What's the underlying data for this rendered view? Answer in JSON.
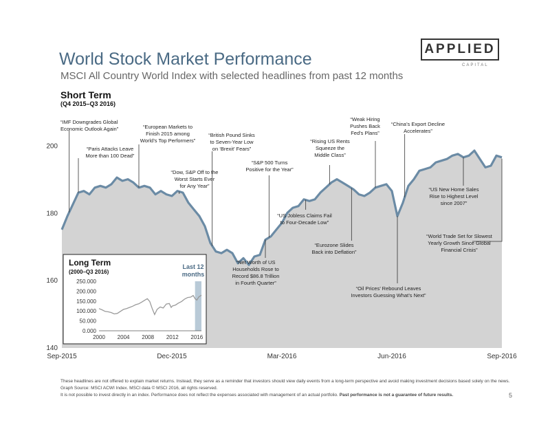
{
  "header": {
    "title": "World Stock Market Performance",
    "subtitle": "MSCI All Country World Index with selected headlines from past 12 months",
    "logo_text": "APPLIED",
    "logo_sub": "CAPITAL"
  },
  "section": {
    "title": "Short Term",
    "range": "(Q4 2015–Q3 2016)"
  },
  "colors": {
    "area": "#d3d3d3",
    "line": "#6b8ba5",
    "inset_band": "#b9cad7",
    "title": "#4a6a84"
  },
  "chart_data": [
    {
      "type": "area",
      "title": "Short Term",
      "subtitle": "(Q4 2015–Q3 2016)",
      "ylim": [
        140,
        203
      ],
      "yticks": [
        140,
        160,
        180,
        200
      ],
      "xlim": [
        0,
        12
      ],
      "xtick_labels": [
        {
          "x": 0,
          "label": "Sep-2015"
        },
        {
          "x": 3,
          "label": "Dec-2015"
        },
        {
          "x": 6,
          "label": "Mar-2016"
        },
        {
          "x": 9,
          "label": "Jun-2016"
        },
        {
          "x": 12,
          "label": "Sep-2016"
        }
      ],
      "series": [
        {
          "values": [
            [
              0,
              175
            ],
            [
              0.15,
              179
            ],
            [
              0.3,
              182.5
            ],
            [
              0.45,
              186
            ],
            [
              0.6,
              186.5
            ],
            [
              0.75,
              185.5
            ],
            [
              0.9,
              187.5
            ],
            [
              1.05,
              188
            ],
            [
              1.2,
              187.5
            ],
            [
              1.35,
              188.5
            ],
            [
              1.5,
              190.5
            ],
            [
              1.65,
              189.5
            ],
            [
              1.8,
              190
            ],
            [
              1.95,
              189
            ],
            [
              2.1,
              187.5
            ],
            [
              2.25,
              188
            ],
            [
              2.4,
              187.5
            ],
            [
              2.55,
              185.5
            ],
            [
              2.7,
              186.5
            ],
            [
              2.85,
              185.5
            ],
            [
              3,
              185
            ],
            [
              3.15,
              186.5
            ],
            [
              3.3,
              186
            ],
            [
              3.45,
              183
            ],
            [
              3.6,
              181
            ],
            [
              3.75,
              179
            ],
            [
              3.9,
              176
            ],
            [
              4.05,
              171
            ],
            [
              4.2,
              168.5
            ],
            [
              4.35,
              168
            ],
            [
              4.5,
              169
            ],
            [
              4.65,
              168
            ],
            [
              4.8,
              165
            ],
            [
              4.95,
              166.5
            ],
            [
              5.1,
              164.5
            ],
            [
              5.25,
              167
            ],
            [
              5.4,
              167.5
            ],
            [
              5.55,
              172
            ],
            [
              5.7,
              173
            ],
            [
              5.85,
              175
            ],
            [
              6,
              177
            ],
            [
              6.15,
              180
            ],
            [
              6.3,
              181.5
            ],
            [
              6.45,
              182
            ],
            [
              6.6,
              184
            ],
            [
              6.75,
              183.5
            ],
            [
              6.9,
              184
            ],
            [
              7.05,
              186
            ],
            [
              7.2,
              187.5
            ],
            [
              7.35,
              189
            ],
            [
              7.5,
              190
            ],
            [
              7.65,
              189
            ],
            [
              7.8,
              188
            ],
            [
              7.95,
              187
            ],
            [
              8.1,
              185.5
            ],
            [
              8.25,
              185
            ],
            [
              8.4,
              186
            ],
            [
              8.55,
              187.5
            ],
            [
              8.7,
              188
            ],
            [
              8.85,
              188.5
            ],
            [
              9,
              186.5
            ],
            [
              9.15,
              179
            ],
            [
              9.3,
              183
            ],
            [
              9.45,
              188
            ],
            [
              9.6,
              190
            ],
            [
              9.75,
              192.5
            ],
            [
              9.9,
              193
            ],
            [
              10.05,
              193.5
            ],
            [
              10.2,
              195
            ],
            [
              10.35,
              195.5
            ],
            [
              10.5,
              196
            ],
            [
              10.65,
              197
            ],
            [
              10.8,
              197.5
            ],
            [
              10.95,
              196.5
            ],
            [
              11.1,
              197
            ],
            [
              11.25,
              198.5
            ],
            [
              11.4,
              196
            ],
            [
              11.55,
              193.5
            ],
            [
              11.7,
              194
            ],
            [
              11.85,
              197
            ],
            [
              12,
              196.5
            ]
          ]
        }
      ],
      "annotations": [
        {
          "x": 0.2,
          "text": "“IMF Downgrades Global\nEconomic Outlook Again”"
        },
        {
          "x": 0.45,
          "text": "“Paris Attacks Leave\nMore than 100 Dead”"
        },
        {
          "x": 2.1,
          "text": "“European Markets to\nFinish 2015 among\nWorld’s Top Performers”"
        },
        {
          "x": 3.2,
          "text": "“Dow, S&P Off to the\nWorst Starts Ever\nfor Any Year”"
        },
        {
          "x": 4.1,
          "text": "“British Pound Sinks\nto Seven-Year Low\non ‘Brexit’ Fears”"
        },
        {
          "x": 5.55,
          "text": "“Net Worth of US\nHouseholds Rose to\nRecord $86.8 Trillion\nin Fourth Quarter”"
        },
        {
          "x": 5.65,
          "text": "“S&P 500 Turns\nPositive for the Year”"
        },
        {
          "x": 6.65,
          "text": "“US Jobless Claims Fail\nto Four-Decade Low”"
        },
        {
          "x": 7.3,
          "text": "“Rising US Rents\nSqueeze the\nMiddle Class”"
        },
        {
          "x": 7.9,
          "text": "“Eurozone Slides\nBack into Deflation”"
        },
        {
          "x": 8.55,
          "text": "“Weak Hiring\nPushes Back\nFed’s Plans”"
        },
        {
          "x": 9.15,
          "text": "“Oil Prices’ Rebound Leaves\nInvestors Guessing What’s Next”"
        },
        {
          "x": 9.35,
          "text": "“China’s Export Decline\nAccelerates”"
        },
        {
          "x": 10.95,
          "text": "“US New Home Sales\nRise to Highest Level\nsince 2007”"
        },
        {
          "x": 12,
          "text": "“World Trade Set for Slowest\nYearly Growth Since Global\nFinancial Crisis”"
        }
      ]
    },
    {
      "type": "line",
      "title": "Long Term",
      "subtitle": "(2000–Q3 2016)",
      "highlight_label": "Last 12\nmonths",
      "highlight_range": [
        2015.7,
        2016.75
      ],
      "xlim": [
        2000,
        2016.75
      ],
      "xticks": [
        2000,
        2004,
        2008,
        2012,
        2016
      ],
      "ylim": [
        0,
        250
      ],
      "yticks": [
        0,
        50,
        100,
        150,
        200,
        250
      ],
      "ytick_labels": [
        "0.000",
        "50.000",
        "100.000",
        "150.000",
        "200.000",
        "250.000"
      ],
      "series": [
        {
          "values": [
            [
              2000,
              112
            ],
            [
              2000.5,
              106
            ],
            [
              2001,
              98
            ],
            [
              2001.5,
              96
            ],
            [
              2002,
              92
            ],
            [
              2002.5,
              85
            ],
            [
              2003,
              88
            ],
            [
              2003.5,
              98
            ],
            [
              2004,
              108
            ],
            [
              2004.5,
              112
            ],
            [
              2005,
              118
            ],
            [
              2005.5,
              124
            ],
            [
              2006,
              132
            ],
            [
              2006.5,
              136
            ],
            [
              2007,
              145
            ],
            [
              2007.5,
              155
            ],
            [
              2007.9,
              162
            ],
            [
              2008.3,
              148
            ],
            [
              2008.7,
              112
            ],
            [
              2009.1,
              82
            ],
            [
              2009.5,
              108
            ],
            [
              2010,
              120
            ],
            [
              2010.5,
              115
            ],
            [
              2011,
              135
            ],
            [
              2011.5,
              138
            ],
            [
              2011.8,
              118
            ],
            [
              2012,
              125
            ],
            [
              2012.5,
              130
            ],
            [
              2013,
              140
            ],
            [
              2013.5,
              148
            ],
            [
              2014,
              160
            ],
            [
              2014.5,
              168
            ],
            [
              2015,
              170
            ],
            [
              2015.4,
              178
            ],
            [
              2015.7,
              162
            ],
            [
              2016,
              155
            ],
            [
              2016.3,
              170
            ],
            [
              2016.75,
              180
            ]
          ]
        }
      ]
    }
  ],
  "footer": {
    "line1": "These headlines are not offered to explain market returns. Instead, they serve as a reminder that investors should view daily events from a long-term perspective and avoid making investment decisions based solely on the news.",
    "line2": "Graph Source: MSCI ACWI Index. MSCI data © MSCI 2016, all rights reserved.",
    "line3": "It is not possible to invest directly in an index. Performance does not reflect the expenses associated with management of an actual portfolio.",
    "line3_bold": "Past performance is not a guarantee of future results.",
    "page": "5"
  }
}
